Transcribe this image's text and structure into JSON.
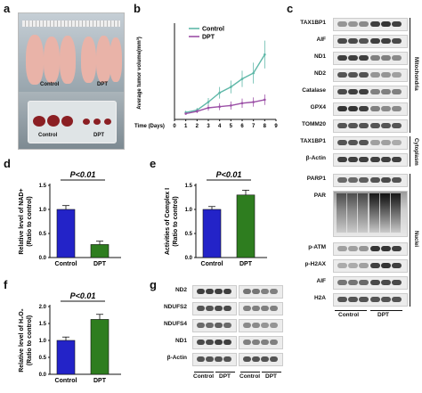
{
  "panels": {
    "a": "a",
    "b": "b",
    "c": "c",
    "d": "d",
    "e": "e",
    "f": "f",
    "g": "g"
  },
  "photo": {
    "control_label": "Control",
    "dpt_label": "DPT",
    "bottom_control": "Control",
    "bottom_dpt": "DPT"
  },
  "colors": {
    "control_bar": "#2323c8",
    "dpt_bar": "#2e7d1f",
    "control_line": "#5fb8a8",
    "dpt_line": "#9b4fa6"
  },
  "chart_data": [
    {
      "panel": "b",
      "type": "line",
      "xlabel": "Time (Days)",
      "ylabel": "Average tumor volume(mm³)",
      "x": [
        1,
        2,
        3,
        4,
        5,
        6,
        7,
        8
      ],
      "xlim": [
        0,
        9
      ],
      "xticks": [
        "0",
        "1",
        "2",
        "3",
        "4",
        "5",
        "6",
        "7",
        "8",
        "9"
      ],
      "series": [
        {
          "name": "Control",
          "values": [
            60,
            80,
            150,
            230,
            280,
            350,
            400,
            560
          ],
          "errors": [
            15,
            20,
            35,
            50,
            55,
            70,
            90,
            120
          ]
        },
        {
          "name": "DPT",
          "values": [
            50,
            70,
            100,
            110,
            120,
            140,
            150,
            170
          ],
          "errors": [
            10,
            15,
            25,
            30,
            35,
            40,
            40,
            45
          ]
        }
      ],
      "legend": "top-left"
    },
    {
      "panel": "d",
      "type": "bar",
      "categories": [
        "Control",
        "DPT"
      ],
      "values": [
        1.0,
        0.27
      ],
      "errors": [
        0.08,
        0.07
      ],
      "ylabel": "Relative level of NAD+ (Ratio to control)",
      "ylim": [
        0,
        1.5
      ],
      "yticks": [
        "0.0",
        "0.5",
        "1.0",
        "1.5"
      ],
      "annotation": "P<0.01"
    },
    {
      "panel": "e",
      "type": "bar",
      "categories": [
        "Control",
        "DPT"
      ],
      "values": [
        1.0,
        1.3
      ],
      "errors": [
        0.06,
        0.1
      ],
      "ylabel": "Activities of Complex I (Ratio to control)",
      "ylim": [
        0,
        1.5
      ],
      "yticks": [
        "0.0",
        "0.5",
        "1.0",
        "1.5"
      ],
      "annotation": "P<0.01"
    },
    {
      "panel": "f",
      "type": "bar",
      "categories": [
        "Control",
        "DPT"
      ],
      "values": [
        1.0,
        1.62
      ],
      "errors": [
        0.1,
        0.15
      ],
      "ylabel": "Relative level of H₂O₂ (Ratio to control)",
      "ylim": [
        0,
        2.0
      ],
      "yticks": [
        "0.0",
        "0.5",
        "1.0",
        "1.5",
        "2.0"
      ],
      "annotation": "P<0.01"
    }
  ],
  "blot_c": {
    "mito_labels": [
      "TAX1BP1",
      "AIF",
      "ND1",
      "ND2",
      "Catalase",
      "GPX4",
      "TOMM20"
    ],
    "cyto_labels": [
      "TAX1BP1",
      "β-Actin"
    ],
    "nuc_labels": [
      "PARP1",
      "PAR",
      "p-ATM",
      "p-H2AX",
      "AIF",
      "H2A"
    ],
    "section_mito": "Mitochondria",
    "section_cyto": "Cytoplasm",
    "section_nuc": "Nuclei",
    "group_control": "Control",
    "group_dpt": "DPT"
  },
  "blot_g": {
    "labels": [
      "ND2",
      "NDUFS2",
      "NDUFS4",
      "ND1",
      "β-Actin"
    ],
    "groups": [
      "Control",
      "DPT",
      "Control",
      "DPT"
    ]
  }
}
